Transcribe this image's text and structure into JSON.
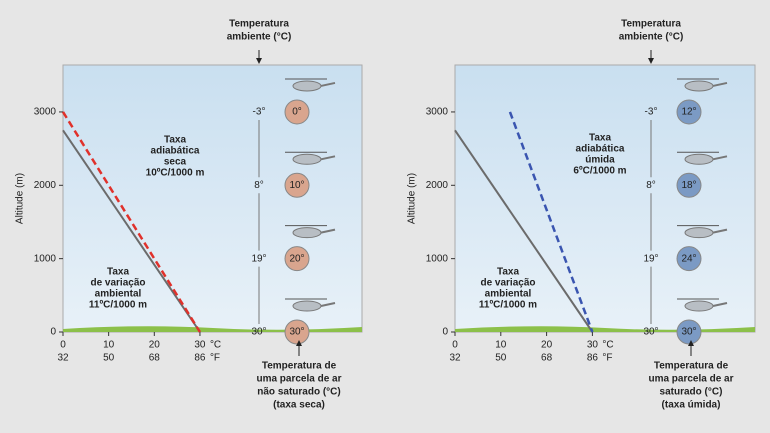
{
  "chart_data": [
    {
      "type": "line",
      "y_label": "Altitude (m)",
      "ylim": [
        0,
        3640
      ],
      "yticks": [
        0,
        1000,
        2000,
        3000
      ],
      "xlim": [
        0,
        65.5
      ],
      "xticks": [
        0,
        10,
        20,
        30
      ],
      "fticks": [
        {
          "value": 0,
          "label": "32"
        },
        {
          "value": 10,
          "label": "50"
        },
        {
          "value": 20,
          "label": "68"
        },
        {
          "value": 30,
          "label": "86"
        }
      ],
      "x_unit": "°C",
      "f_unit": "°F",
      "series": [
        {
          "name": [
            "Taxa",
            "de variação",
            "ambiental",
            "11ºC/1000 m"
          ],
          "color": "#6b6b6b",
          "dashed": false,
          "x": [
            0,
            30
          ],
          "values": [
            2750,
            0
          ]
        },
        {
          "name": [
            "Taxa",
            "adiabática",
            "seca",
            "10ºC/1000 m"
          ],
          "color": "#e0312b",
          "dashed": true,
          "x": [
            0,
            30
          ],
          "values": [
            3000,
            0
          ]
        }
      ],
      "top_note": [
        "Temperatura",
        "ambiente (°C)"
      ],
      "bottom_note": [
        "Temperatura de",
        "uma parcela de ar",
        "não saturado (°C)",
        "(taxa seca)"
      ],
      "balloon_color": "#d9a58e",
      "balloons": [
        {
          "altitude": 3000,
          "ambient": "-3°",
          "parcel": "0°"
        },
        {
          "altitude": 2000,
          "ambient": "8°",
          "parcel": "10°"
        },
        {
          "altitude": 1000,
          "ambient": "19°",
          "parcel": "20°"
        },
        {
          "altitude": 0,
          "ambient": "30°",
          "parcel": "30°"
        }
      ]
    },
    {
      "type": "line",
      "y_label": "Altitude (m)",
      "ylim": [
        0,
        3640
      ],
      "yticks": [
        0,
        1000,
        2000,
        3000
      ],
      "xlim": [
        0,
        65.5
      ],
      "xticks": [
        0,
        10,
        20,
        30
      ],
      "fticks": [
        {
          "value": 0,
          "label": "32"
        },
        {
          "value": 10,
          "label": "50"
        },
        {
          "value": 20,
          "label": "68"
        },
        {
          "value": 30,
          "label": "86"
        }
      ],
      "x_unit": "°C",
      "f_unit": "°F",
      "series": [
        {
          "name": [
            "Taxa",
            "de variação",
            "ambiental",
            "11ºC/1000 m"
          ],
          "color": "#6b6b6b",
          "dashed": false,
          "x": [
            0,
            30
          ],
          "values": [
            2750,
            0
          ]
        },
        {
          "name": [
            "Taxa",
            "adiabática",
            "úmida",
            "6ºC/1000 m"
          ],
          "color": "#3a55b0",
          "dashed": true,
          "x": [
            12,
            30
          ],
          "values": [
            3000,
            0
          ]
        }
      ],
      "top_note": [
        "Temperatura",
        "ambiente (°C)"
      ],
      "bottom_note": [
        "Temperatura de",
        "uma parcela de ar",
        "saturado (°C)",
        "(taxa úmida)"
      ],
      "balloon_color": "#7b9ac4",
      "balloons": [
        {
          "altitude": 3000,
          "ambient": "-3°",
          "parcel": "12°"
        },
        {
          "altitude": 2000,
          "ambient": "8°",
          "parcel": "18°"
        },
        {
          "altitude": 1000,
          "ambient": "19°",
          "parcel": "24°"
        },
        {
          "altitude": 0,
          "ambient": "30°",
          "parcel": "30°"
        }
      ]
    }
  ]
}
